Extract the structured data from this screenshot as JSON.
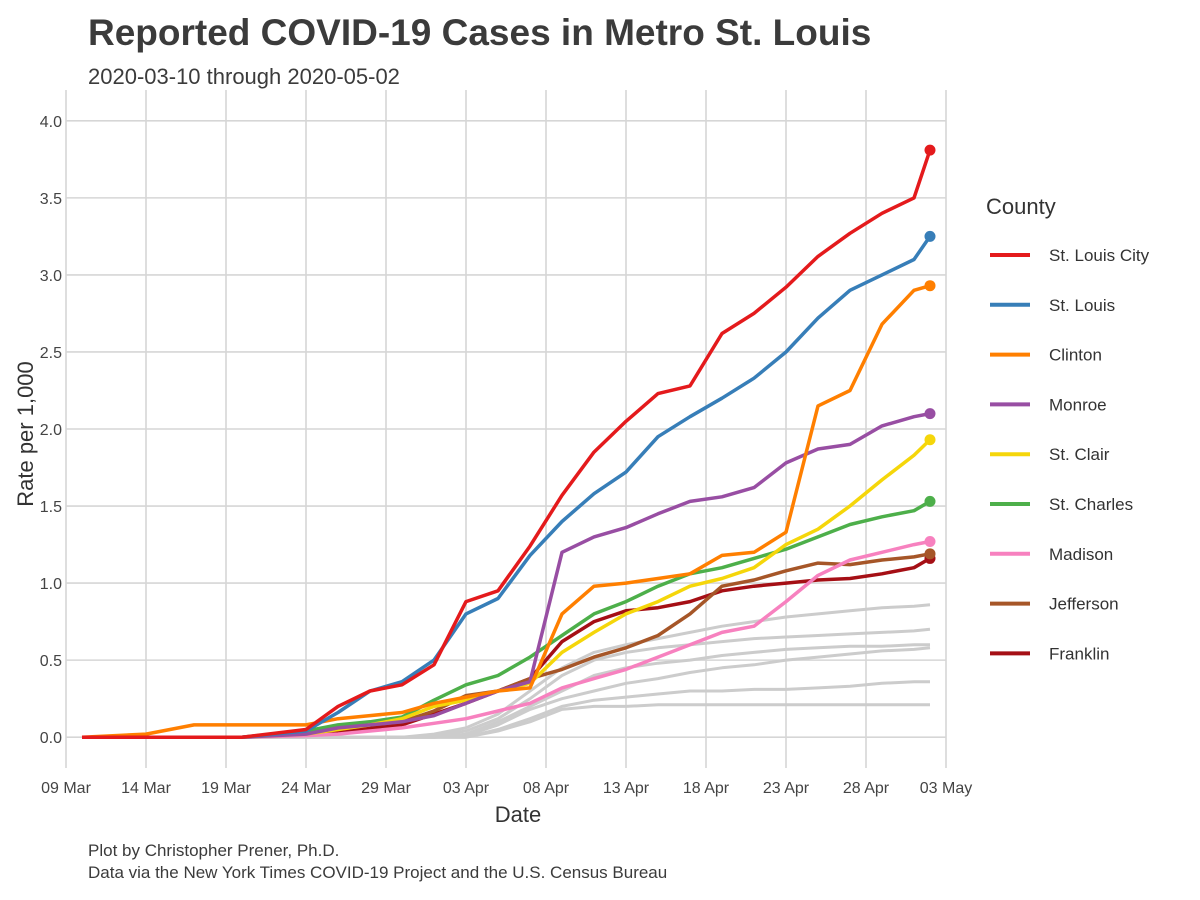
{
  "header": {
    "title": "Reported COVID-19 Cases in Metro St. Louis",
    "subtitle": "2020-03-10 through 2020-05-02"
  },
  "caption": {
    "line1": "Plot by Christopher Prener, Ph.D.",
    "line2": "Data via the New York Times COVID-19 Project and the U.S. Census Bureau"
  },
  "chart_data": {
    "type": "line",
    "xlabel": "Date",
    "ylabel": "Rate per 1,000",
    "xlim": [
      "2020-03-09",
      "2020-05-03"
    ],
    "ylim": [
      -0.2,
      4.2
    ],
    "x_ticks": [
      "2020-03-09",
      "2020-03-14",
      "2020-03-19",
      "2020-03-24",
      "2020-03-29",
      "2020-04-03",
      "2020-04-08",
      "2020-04-13",
      "2020-04-18",
      "2020-04-23",
      "2020-04-28",
      "2020-05-03"
    ],
    "x_tick_labels": [
      "09 Mar",
      "14 Mar",
      "19 Mar",
      "24 Mar",
      "29 Mar",
      "03 Apr",
      "08 Apr",
      "13 Apr",
      "18 Apr",
      "23 Apr",
      "28 Apr",
      "03 May"
    ],
    "y_ticks": [
      0.0,
      0.5,
      1.0,
      1.5,
      2.0,
      2.5,
      3.0,
      3.5,
      4.0
    ],
    "y_tick_labels": [
      "0.0",
      "0.5",
      "1.0",
      "1.5",
      "2.0",
      "2.5",
      "3.0",
      "3.5",
      "4.0"
    ],
    "grid": true,
    "legend": {
      "title": "County",
      "position": "right"
    },
    "x": [
      "2020-03-10",
      "2020-03-14",
      "2020-03-17",
      "2020-03-20",
      "2020-03-24",
      "2020-03-26",
      "2020-03-28",
      "2020-03-30",
      "2020-04-01",
      "2020-04-03",
      "2020-04-05",
      "2020-04-07",
      "2020-04-09",
      "2020-04-11",
      "2020-04-13",
      "2020-04-15",
      "2020-04-17",
      "2020-04-19",
      "2020-04-21",
      "2020-04-23",
      "2020-04-25",
      "2020-04-27",
      "2020-04-29",
      "2020-05-01",
      "2020-05-02"
    ],
    "series": [
      {
        "name": "St. Louis City",
        "color": "#e41a1c",
        "values": [
          0,
          0,
          0,
          0,
          0.05,
          0.2,
          0.3,
          0.34,
          0.47,
          0.88,
          0.95,
          1.24,
          1.57,
          1.85,
          2.05,
          2.23,
          2.28,
          2.62,
          2.75,
          2.92,
          3.12,
          3.27,
          3.4,
          3.5,
          3.81
        ]
      },
      {
        "name": "St. Louis",
        "color": "#377eb8",
        "values": [
          0,
          0,
          0,
          0,
          0.04,
          0.16,
          0.3,
          0.36,
          0.5,
          0.8,
          0.9,
          1.18,
          1.4,
          1.58,
          1.72,
          1.95,
          2.08,
          2.2,
          2.33,
          2.5,
          2.72,
          2.9,
          3.0,
          3.1,
          3.25
        ]
      },
      {
        "name": "Clinton",
        "color": "#ff7f00",
        "values": [
          0,
          0.02,
          0.08,
          0.08,
          0.08,
          0.12,
          0.14,
          0.16,
          0.22,
          0.26,
          0.3,
          0.32,
          0.8,
          0.98,
          1.0,
          1.03,
          1.06,
          1.18,
          1.2,
          1.33,
          2.15,
          2.25,
          2.68,
          2.9,
          2.93
        ]
      },
      {
        "name": "Monroe",
        "color": "#984ea3",
        "values": [
          0,
          0,
          0,
          0,
          0.02,
          0.06,
          0.08,
          0.1,
          0.14,
          0.22,
          0.3,
          0.36,
          1.2,
          1.3,
          1.36,
          1.45,
          1.53,
          1.56,
          1.62,
          1.78,
          1.87,
          1.9,
          2.02,
          2.08,
          2.1
        ]
      },
      {
        "name": "St. Clair",
        "color": "#f5d60a",
        "values": [
          0,
          0,
          0,
          0,
          0.02,
          0.05,
          0.08,
          0.12,
          0.2,
          0.24,
          0.3,
          0.35,
          0.55,
          0.68,
          0.8,
          0.88,
          0.98,
          1.03,
          1.1,
          1.25,
          1.35,
          1.5,
          1.67,
          1.83,
          1.93
        ]
      },
      {
        "name": "St. Charles",
        "color": "#4daf4a",
        "values": [
          0,
          0,
          0,
          0,
          0.04,
          0.08,
          0.1,
          0.13,
          0.24,
          0.34,
          0.4,
          0.52,
          0.66,
          0.8,
          0.88,
          0.98,
          1.06,
          1.1,
          1.16,
          1.22,
          1.3,
          1.38,
          1.43,
          1.47,
          1.53
        ]
      },
      {
        "name": "Madison",
        "color": "#f781bf",
        "values": [
          0,
          0,
          0,
          0,
          0.01,
          0.02,
          0.04,
          0.06,
          0.09,
          0.12,
          0.17,
          0.22,
          0.32,
          0.38,
          0.44,
          0.52,
          0.6,
          0.68,
          0.72,
          0.88,
          1.05,
          1.15,
          1.2,
          1.25,
          1.27
        ]
      },
      {
        "name": "Jefferson",
        "color": "#a65628",
        "values": [
          0,
          0,
          0,
          0,
          0.02,
          0.05,
          0.08,
          0.1,
          0.17,
          0.27,
          0.3,
          0.38,
          0.44,
          0.52,
          0.58,
          0.66,
          0.8,
          0.98,
          1.02,
          1.08,
          1.13,
          1.12,
          1.15,
          1.17,
          1.19
        ]
      },
      {
        "name": "Franklin",
        "color": "#a50f15",
        "values": [
          0,
          0,
          0,
          0,
          0.02,
          0.04,
          0.06,
          0.08,
          0.15,
          0.22,
          0.3,
          0.38,
          0.62,
          0.75,
          0.82,
          0.84,
          0.88,
          0.95,
          0.98,
          1.0,
          1.02,
          1.03,
          1.06,
          1.1,
          1.16
        ]
      },
      {
        "name": "",
        "color": "#cccccc",
        "values": [
          0,
          0,
          0,
          0,
          0,
          0,
          0,
          0,
          0.02,
          0.06,
          0.15,
          0.3,
          0.45,
          0.55,
          0.6,
          0.64,
          0.68,
          0.72,
          0.75,
          0.78,
          0.8,
          0.82,
          0.84,
          0.85,
          0.86
        ]
      },
      {
        "name": "",
        "color": "#cccccc",
        "values": [
          0,
          0,
          0,
          0,
          0,
          0,
          0,
          0,
          0.01,
          0.04,
          0.12,
          0.25,
          0.4,
          0.5,
          0.55,
          0.58,
          0.6,
          0.62,
          0.64,
          0.65,
          0.66,
          0.67,
          0.68,
          0.69,
          0.7
        ]
      },
      {
        "name": "",
        "color": "#cccccc",
        "values": [
          0,
          0,
          0,
          0,
          0,
          0,
          0,
          0,
          0,
          0.02,
          0.1,
          0.2,
          0.3,
          0.4,
          0.45,
          0.48,
          0.5,
          0.53,
          0.55,
          0.57,
          0.58,
          0.59,
          0.59,
          0.6,
          0.6
        ]
      },
      {
        "name": "",
        "color": "#cccccc",
        "values": [
          0,
          0,
          0,
          0,
          0,
          0,
          0,
          0,
          0,
          0.01,
          0.08,
          0.18,
          0.25,
          0.3,
          0.35,
          0.38,
          0.42,
          0.45,
          0.47,
          0.5,
          0.52,
          0.54,
          0.56,
          0.57,
          0.58
        ]
      },
      {
        "name": "",
        "color": "#cccccc",
        "values": [
          0,
          0,
          0,
          0,
          0,
          0,
          0,
          0,
          0,
          0,
          0.05,
          0.12,
          0.2,
          0.24,
          0.26,
          0.28,
          0.3,
          0.3,
          0.31,
          0.31,
          0.32,
          0.33,
          0.35,
          0.36,
          0.36
        ]
      },
      {
        "name": "",
        "color": "#cccccc",
        "values": [
          0,
          0,
          0,
          0,
          0,
          0,
          0,
          0,
          0,
          0,
          0.04,
          0.1,
          0.18,
          0.2,
          0.2,
          0.21,
          0.21,
          0.21,
          0.21,
          0.21,
          0.21,
          0.21,
          0.21,
          0.21,
          0.21
        ]
      }
    ]
  }
}
